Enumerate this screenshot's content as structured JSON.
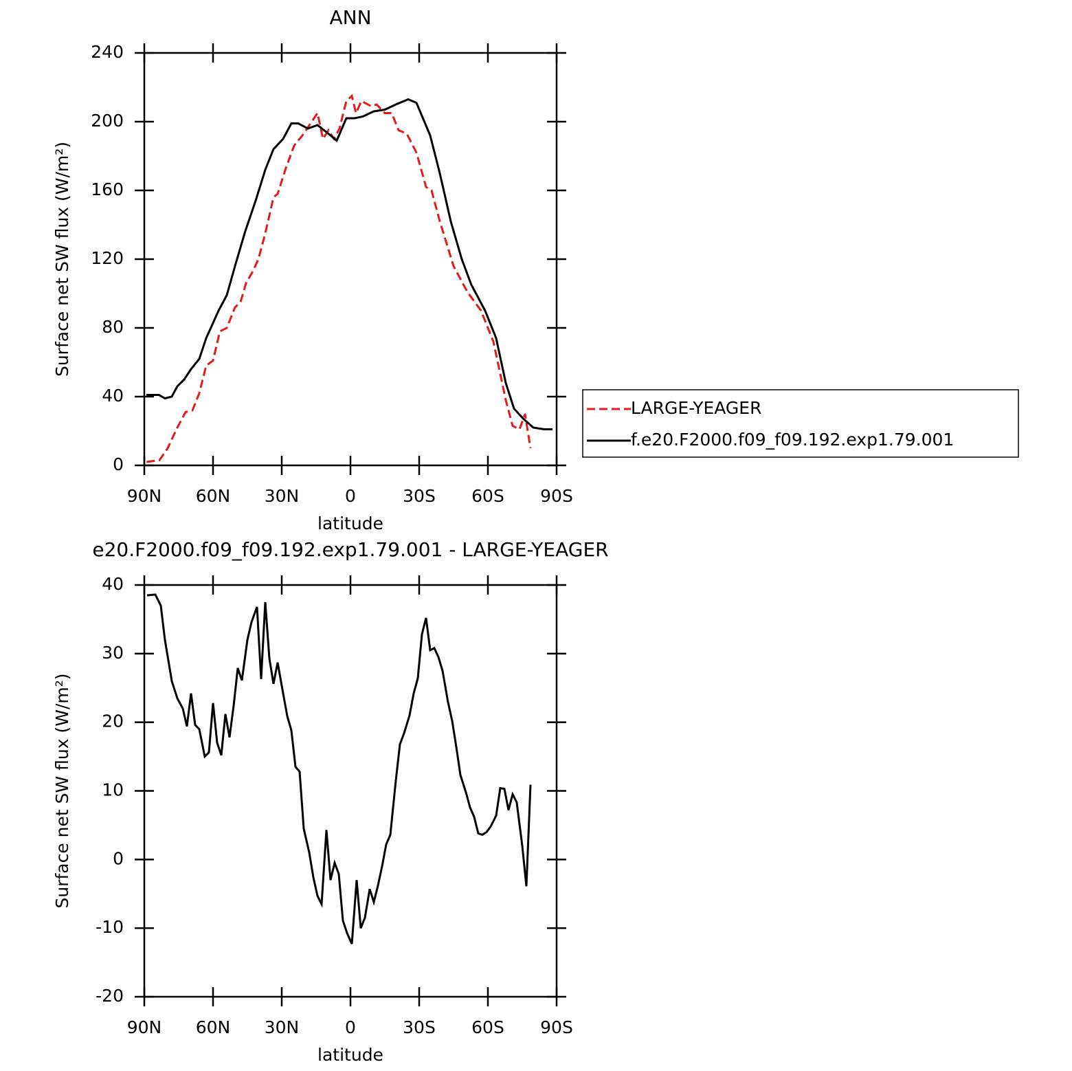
{
  "chart_data": [
    {
      "type": "line",
      "title": "ANN",
      "x_label": "latitude",
      "y_label": "Surface net SW flux (W/m²)",
      "xlim": [
        90,
        -90
      ],
      "xticks": [
        {
          "value": 90,
          "label": "90N"
        },
        {
          "value": 60,
          "label": "60N"
        },
        {
          "value": 30,
          "label": "30N"
        },
        0,
        {
          "value": -30,
          "label": "30S"
        },
        {
          "value": -60,
          "label": "60S"
        },
        {
          "value": -90,
          "label": "90S"
        }
      ],
      "ylim": [
        0,
        240
      ],
      "yticks": [
        0,
        40,
        80,
        120,
        160,
        200,
        240
      ],
      "legend": "right",
      "series": [
        {
          "name": "LARGE-YEAGER",
          "color": "#e41a1c",
          "line_style": "dashed",
          "x": [
            89,
            83.4,
            79.8,
            75.6,
            72,
            69,
            66,
            63,
            60,
            57,
            54,
            50.4,
            48,
            45.6,
            42.6,
            40.2,
            37.2,
            33.6,
            31.8,
            28.2,
            24.6,
            21,
            17.4,
            14.4,
            12,
            9.6,
            7.2,
            4.8,
            1.8,
            -0.6,
            -2.4,
            -4.8,
            -9,
            -11.4,
            -15,
            -18,
            -21,
            -24.6,
            -28.8,
            -33,
            -35.4,
            -39,
            -45,
            -51,
            -57,
            -62.4,
            -67.8,
            -70.8,
            -73.8,
            -76.2,
            -78.6
          ],
          "values": [
            2,
            3,
            10,
            22,
            31,
            32,
            42,
            58,
            61,
            78,
            80,
            92,
            95,
            106,
            113,
            120,
            135,
            156,
            158,
            173,
            186,
            192,
            199,
            205,
            190,
            195,
            190,
            196,
            212,
            215,
            205,
            212,
            209,
            210,
            205,
            205,
            195,
            193,
            182,
            162,
            160,
            142,
            116,
            101,
            90,
            72,
            38,
            23,
            21,
            30,
            10
          ]
        },
        {
          "name": "f.e20.F2000.f09_f09.192.exp1.79.001",
          "color": "#000000",
          "line_style": "solid",
          "x": [
            89.1,
            83.6,
            81,
            78,
            75.6,
            72.6,
            69.6,
            66,
            63,
            57.6,
            54,
            50.4,
            46,
            41.4,
            37.2,
            33.6,
            29.4,
            25.8,
            22.8,
            18.6,
            14.4,
            9.6,
            6,
            1.8,
            -1.8,
            -5.4,
            -10.2,
            -15,
            -19.8,
            -25.2,
            -28.8,
            -34.8,
            -39,
            -43.8,
            -48.6,
            -52.8,
            -58.8,
            -63.6,
            -67.8,
            -71.4,
            -75.6,
            -79.8,
            -84.6,
            -88.2
          ],
          "values": [
            41,
            41,
            39,
            40,
            46,
            50,
            56,
            62,
            74,
            90,
            99,
            116,
            136,
            154,
            172,
            184,
            190,
            199,
            199,
            196,
            198,
            193,
            189,
            202,
            202,
            203,
            206,
            207,
            210,
            213,
            211,
            192,
            170,
            142,
            120,
            105,
            90,
            74,
            48,
            33,
            27,
            22,
            21,
            21
          ]
        }
      ]
    },
    {
      "type": "line",
      "title": "e20.F2000.f09_f09.192.exp1.79.001 - LARGE-YEAGER",
      "x_label": "latitude",
      "y_label": "Surface net SW flux (W/m²)",
      "xlim": [
        90,
        -90
      ],
      "xticks": [
        {
          "value": 90,
          "label": "90N"
        },
        {
          "value": 60,
          "label": "60N"
        },
        {
          "value": 30,
          "label": "30N"
        },
        0,
        {
          "value": -30,
          "label": "30S"
        },
        {
          "value": -60,
          "label": "60S"
        },
        {
          "value": -90,
          "label": "90S"
        }
      ],
      "ylim": [
        -20,
        40
      ],
      "yticks": [
        -20,
        -10,
        0,
        10,
        20,
        30,
        40
      ],
      "series": [
        {
          "color": "#000000",
          "line_style": "solid",
          "x": [
            88.8,
            85.2,
            82.8,
            81,
            78,
            75.6,
            73.2,
            71.4,
            69.6,
            67.8,
            66,
            63.6,
            61.8,
            60,
            58.2,
            56.4,
            54.6,
            52.8,
            51,
            49.2,
            47.4,
            45,
            43.2,
            40.8,
            39,
            37.2,
            35.4,
            33.6,
            31.8,
            29.4,
            27.6,
            25.8,
            24,
            22.2,
            20.4,
            18,
            16.2,
            14.4,
            12.6,
            10.5,
            8.7,
            6.9,
            5.1,
            3.3,
            1.5,
            -0.6,
            -2.7,
            -4.5,
            -6.3,
            -8.4,
            -10.2,
            -12,
            -13.8,
            -15.6,
            -17.4,
            -19.8,
            -21.6,
            -23.4,
            -25.8,
            -27.6,
            -29.4,
            -31.2,
            -33,
            -34.8,
            -36.6,
            -38.4,
            -40.2,
            -42.6,
            -44.4,
            -46.2,
            -48,
            -50.4,
            -52.2,
            -54,
            -55.8,
            -57.6,
            -59.4,
            -61.2,
            -63.6,
            -65.4,
            -67.2,
            -69,
            -70.8,
            -72.6,
            -75,
            -76.8,
            -78.6
          ],
          "values": [
            38.5,
            38.6,
            37,
            32,
            26,
            23.5,
            22,
            19.4,
            24.2,
            19.6,
            19,
            15,
            15.6,
            22.8,
            17,
            15.2,
            21.2,
            17.8,
            22.4,
            27.9,
            26.1,
            32,
            34.6,
            36.8,
            26.3,
            37.5,
            29.3,
            25.6,
            28.7,
            24.2,
            20.9,
            18.8,
            13.5,
            12.8,
            4.5,
            1,
            -2.6,
            -5.3,
            -6.5,
            4.3,
            -3,
            -0.5,
            -2.1,
            -8.9,
            -10.7,
            -12.3,
            -3,
            -10,
            -8.5,
            -4.3,
            -6.2,
            -3.8,
            -1,
            2.2,
            3.6,
            11.5,
            16.8,
            18.4,
            21,
            24.2,
            26.4,
            32.8,
            35.2,
            30.5,
            30.8,
            29.5,
            27.5,
            22.9,
            20.2,
            16.4,
            12.3,
            9.8,
            7.6,
            6.2,
            3.8,
            3.6,
            4,
            4.8,
            6.4,
            10.4,
            10.3,
            7.2,
            9.5,
            8.3,
            2,
            -3.9,
            10.9
          ]
        }
      ]
    }
  ]
}
